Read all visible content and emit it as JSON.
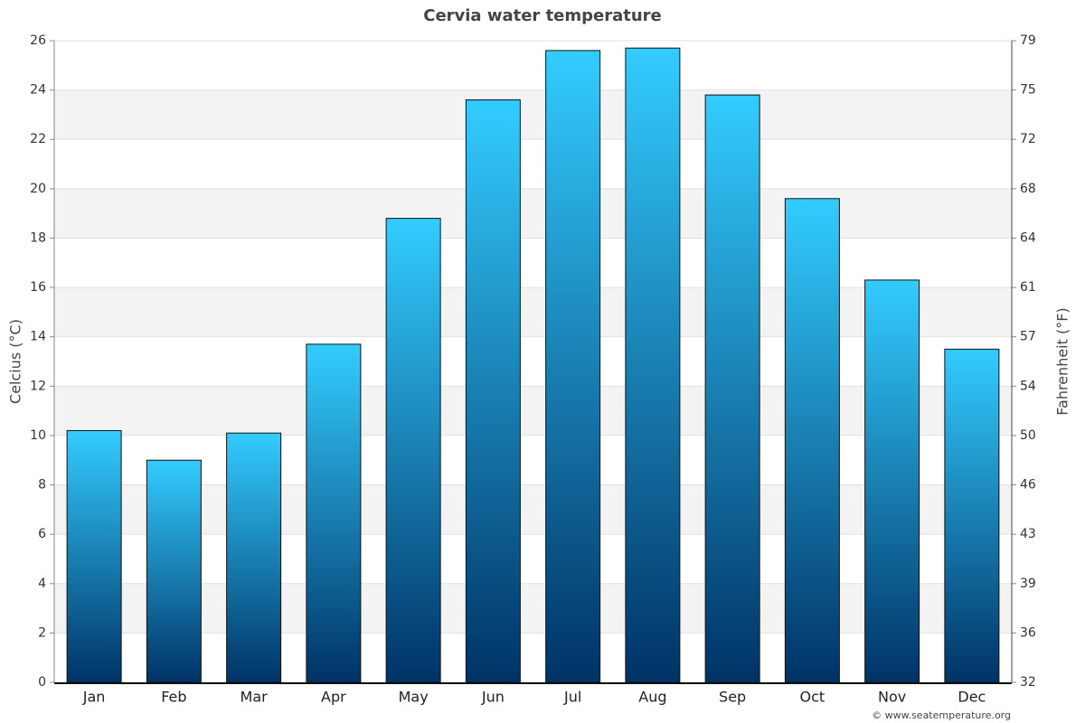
{
  "chart_data": {
    "type": "bar",
    "title": "Cervia water temperature",
    "y_label": "Celcius (°C)",
    "y2_label": "Fahrenheit (°F)",
    "credit": "© www.seatemperature.org",
    "categories": [
      "Jan",
      "Feb",
      "Mar",
      "Apr",
      "May",
      "Jun",
      "Jul",
      "Aug",
      "Sep",
      "Oct",
      "Nov",
      "Dec"
    ],
    "values": [
      10.2,
      9.0,
      10.1,
      13.7,
      18.8,
      23.6,
      25.6,
      25.7,
      23.8,
      19.6,
      16.3,
      13.5
    ],
    "color_top": "#33ccff",
    "color_bottom": "#003366",
    "ylim": [
      0,
      26
    ],
    "yticks": [
      0,
      2,
      4,
      6,
      8,
      10,
      12,
      14,
      16,
      18,
      20,
      22,
      24,
      26
    ],
    "y2lim": [
      32,
      78.8
    ],
    "y2ticks": [
      32,
      {
        "value": 35.6,
        "label": "36"
      },
      {
        "value": 39.2,
        "label": "39"
      },
      {
        "value": 42.8,
        "label": "43"
      },
      {
        "value": 46.4,
        "label": "46"
      },
      50,
      {
        "value": 53.6,
        "label": "54"
      },
      {
        "value": 57.2,
        "label": "57"
      },
      {
        "value": 60.8,
        "label": "61"
      },
      {
        "value": 64.4,
        "label": "64"
      },
      68,
      {
        "value": 71.6,
        "label": "72"
      },
      {
        "value": 75.2,
        "label": "75"
      },
      {
        "value": 78.8,
        "label": "79"
      }
    ],
    "grid": true
  }
}
